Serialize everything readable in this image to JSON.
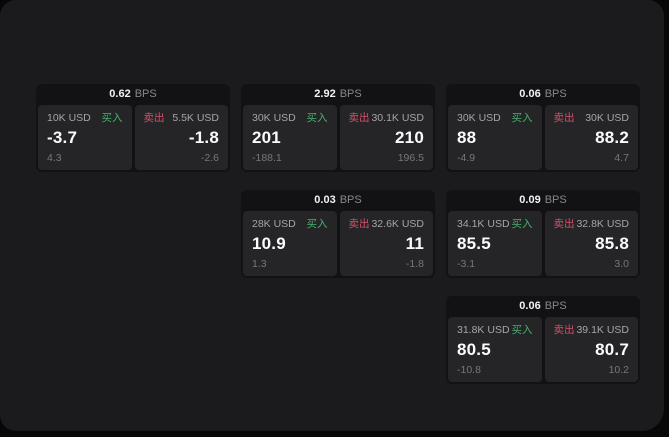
{
  "colors": {
    "background": "#070708",
    "panel": "#1b1b1d",
    "card": "#121214",
    "tile": "#252528",
    "buy_accent": "#46b16b",
    "sell_accent": "#d2506a"
  },
  "cards": [
    {
      "bps": "0.62",
      "bps_unit": "BPS",
      "buy": {
        "amount": "10K USD",
        "side": "买入",
        "value": "-3.7",
        "delta": "4.3"
      },
      "sell": {
        "amount": "5.5K USD",
        "side": "卖出",
        "value": "-1.8",
        "delta": "-2.6"
      }
    },
    {
      "bps": "2.92",
      "bps_unit": "BPS",
      "buy": {
        "amount": "30K USD",
        "side": "买入",
        "value": "201",
        "delta": "-188.1"
      },
      "sell": {
        "amount": "30.1K USD",
        "side": "卖出",
        "value": "210",
        "delta": "196.5"
      }
    },
    {
      "bps": "0.06",
      "bps_unit": "BPS",
      "buy": {
        "amount": "30K USD",
        "side": "买入",
        "value": "88",
        "delta": "-4.9"
      },
      "sell": {
        "amount": "30K USD",
        "side": "卖出",
        "value": "88.2",
        "delta": "4.7"
      }
    },
    {
      "bps": "0.03",
      "bps_unit": "BPS",
      "buy": {
        "amount": "28K USD",
        "side": "买入",
        "value": "10.9",
        "delta": "1.3"
      },
      "sell": {
        "amount": "32.6K USD",
        "side": "卖出",
        "value": "11",
        "delta": "-1.8"
      }
    },
    {
      "bps": "0.09",
      "bps_unit": "BPS",
      "buy": {
        "amount": "34.1K USD",
        "side": "买入",
        "value": "85.5",
        "delta": "-3.1"
      },
      "sell": {
        "amount": "32.8K USD",
        "side": "卖出",
        "value": "85.8",
        "delta": "3.0"
      }
    },
    {
      "bps": "0.06",
      "bps_unit": "BPS",
      "buy": {
        "amount": "31.8K USD",
        "side": "买入",
        "value": "80.5",
        "delta": "-10.8"
      },
      "sell": {
        "amount": "39.1K USD",
        "side": "卖出",
        "value": "80.7",
        "delta": "10.2"
      }
    }
  ]
}
